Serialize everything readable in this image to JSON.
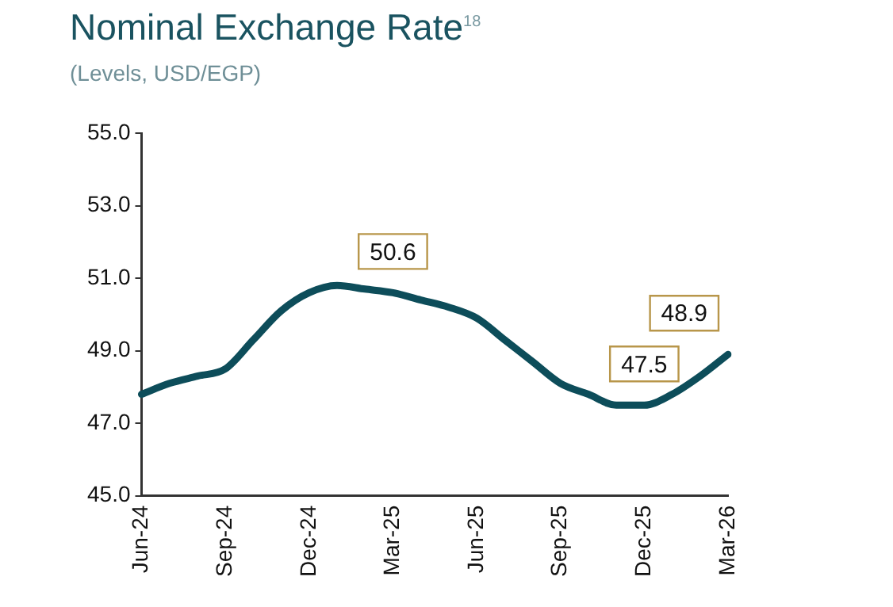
{
  "chart_data": {
    "type": "line",
    "title": "Nominal Exchange Rate$^{18}$",
    "subtitle": "(Levels, USD/EGP)",
    "categories": [
      "Jun-24",
      null,
      null,
      "Sep-24",
      null,
      null,
      "Dec-24",
      null,
      null,
      "Mar-25",
      null,
      null,
      "Jun-25",
      null,
      null,
      "Sep-25",
      null,
      null,
      "Dec-25",
      null,
      null,
      "Mar-26"
    ],
    "series": [
      {
        "color": "#0d4d5a",
        "values": [
          47.8,
          48.1,
          48.3,
          48.5,
          49.3,
          50.1,
          50.6,
          50.8,
          50.7,
          50.6,
          50.4,
          50.2,
          49.9,
          49.3,
          48.7,
          48.1,
          47.8,
          47.5,
          47.5,
          47.8,
          48.3,
          48.9
        ]
      }
    ],
    "ylim": [
      45,
      55
    ],
    "yticks": [
      {
        "value": 45,
        "label": "45.0"
      },
      {
        "value": 47,
        "label": "47.0"
      },
      {
        "value": 49,
        "label": "49.0"
      },
      {
        "value": 51,
        "label": "51.0"
      },
      {
        "value": 53,
        "label": "53.0"
      },
      {
        "value": 55,
        "label": "55.0"
      }
    ],
    "marker": "none",
    "line_style": "solid",
    "annotations": [
      {
        "text": "50.6",
        "x": "Mar-25",
        "y": 50.6
      },
      {
        "text": "47.5",
        "x": "Dec-25",
        "y": 47.5
      },
      {
        "text": "48.9",
        "x": "Mar-26",
        "y": 48.9
      }
    ]
  }
}
